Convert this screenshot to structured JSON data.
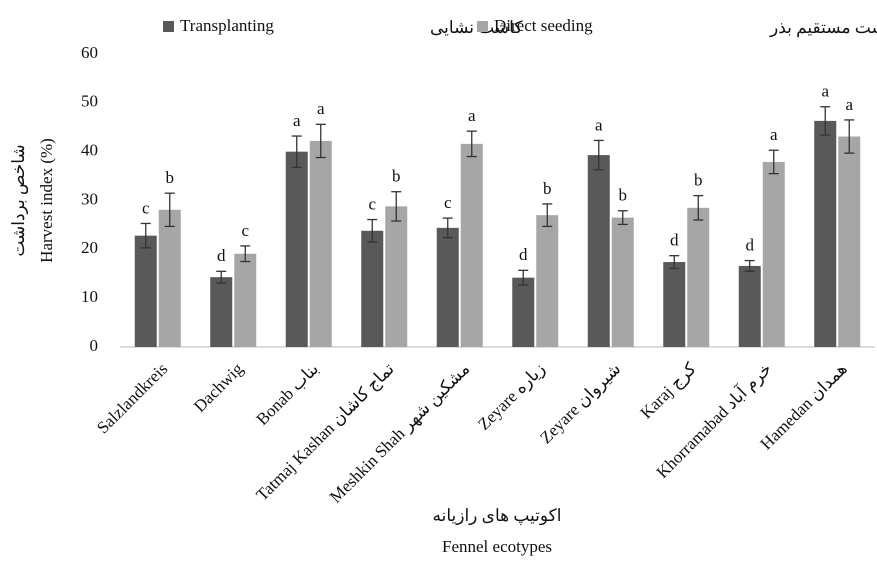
{
  "chart_data": {
    "type": "bar",
    "ylabel": "Harvest index (%)",
    "ylabel_fa": "شاخص برداشت",
    "xlabel_fa": "اکوتیپ های رازیانه",
    "xlabel": "Fennel ecotypes",
    "categories": [
      "Salzlandkreis",
      "Dachwig",
      "Bonab بناب",
      "Tatmaj Kashan تماج کاشان",
      "Meshkin Shah مشکین شهر",
      "Zeyare زیاره",
      "Zeyare شیروان",
      "Karaj کرج",
      "Khorramabad خرم آباد",
      "Hamedan همدان"
    ],
    "series": [
      {
        "name": "Transplanting",
        "name_fa": "کاشت نشایی",
        "color": "#595959",
        "values": [
          22.8,
          14.3,
          40,
          23.8,
          24.4,
          14.2,
          39.3,
          17.4,
          16.6,
          46.3
        ],
        "errors": [
          2.5,
          1.2,
          3.2,
          2.3,
          2,
          1.5,
          3,
          1.3,
          1.1,
          2.9
        ],
        "letters": [
          "c",
          "d",
          "a",
          "c",
          "c",
          "d",
          "a",
          "d",
          "d",
          "a"
        ]
      },
      {
        "name": "Direct seeding",
        "name_fa": "کاشت مستقیم بذر",
        "color": "#a6a6a6",
        "values": [
          28.1,
          19.1,
          42.2,
          28.8,
          41.6,
          27,
          26.5,
          28.5,
          37.9,
          43.1
        ],
        "errors": [
          3.4,
          1.6,
          3.4,
          3,
          2.6,
          2.3,
          1.4,
          2.5,
          2.4,
          3.4
        ],
        "letters": [
          "b",
          "c",
          "a",
          "b",
          "a",
          "b",
          "b",
          "b",
          "a",
          "a"
        ]
      }
    ],
    "ylim": [
      0,
      60
    ],
    "yticks": [
      0,
      10,
      20,
      30,
      40,
      50,
      60
    ],
    "grid": false
  }
}
